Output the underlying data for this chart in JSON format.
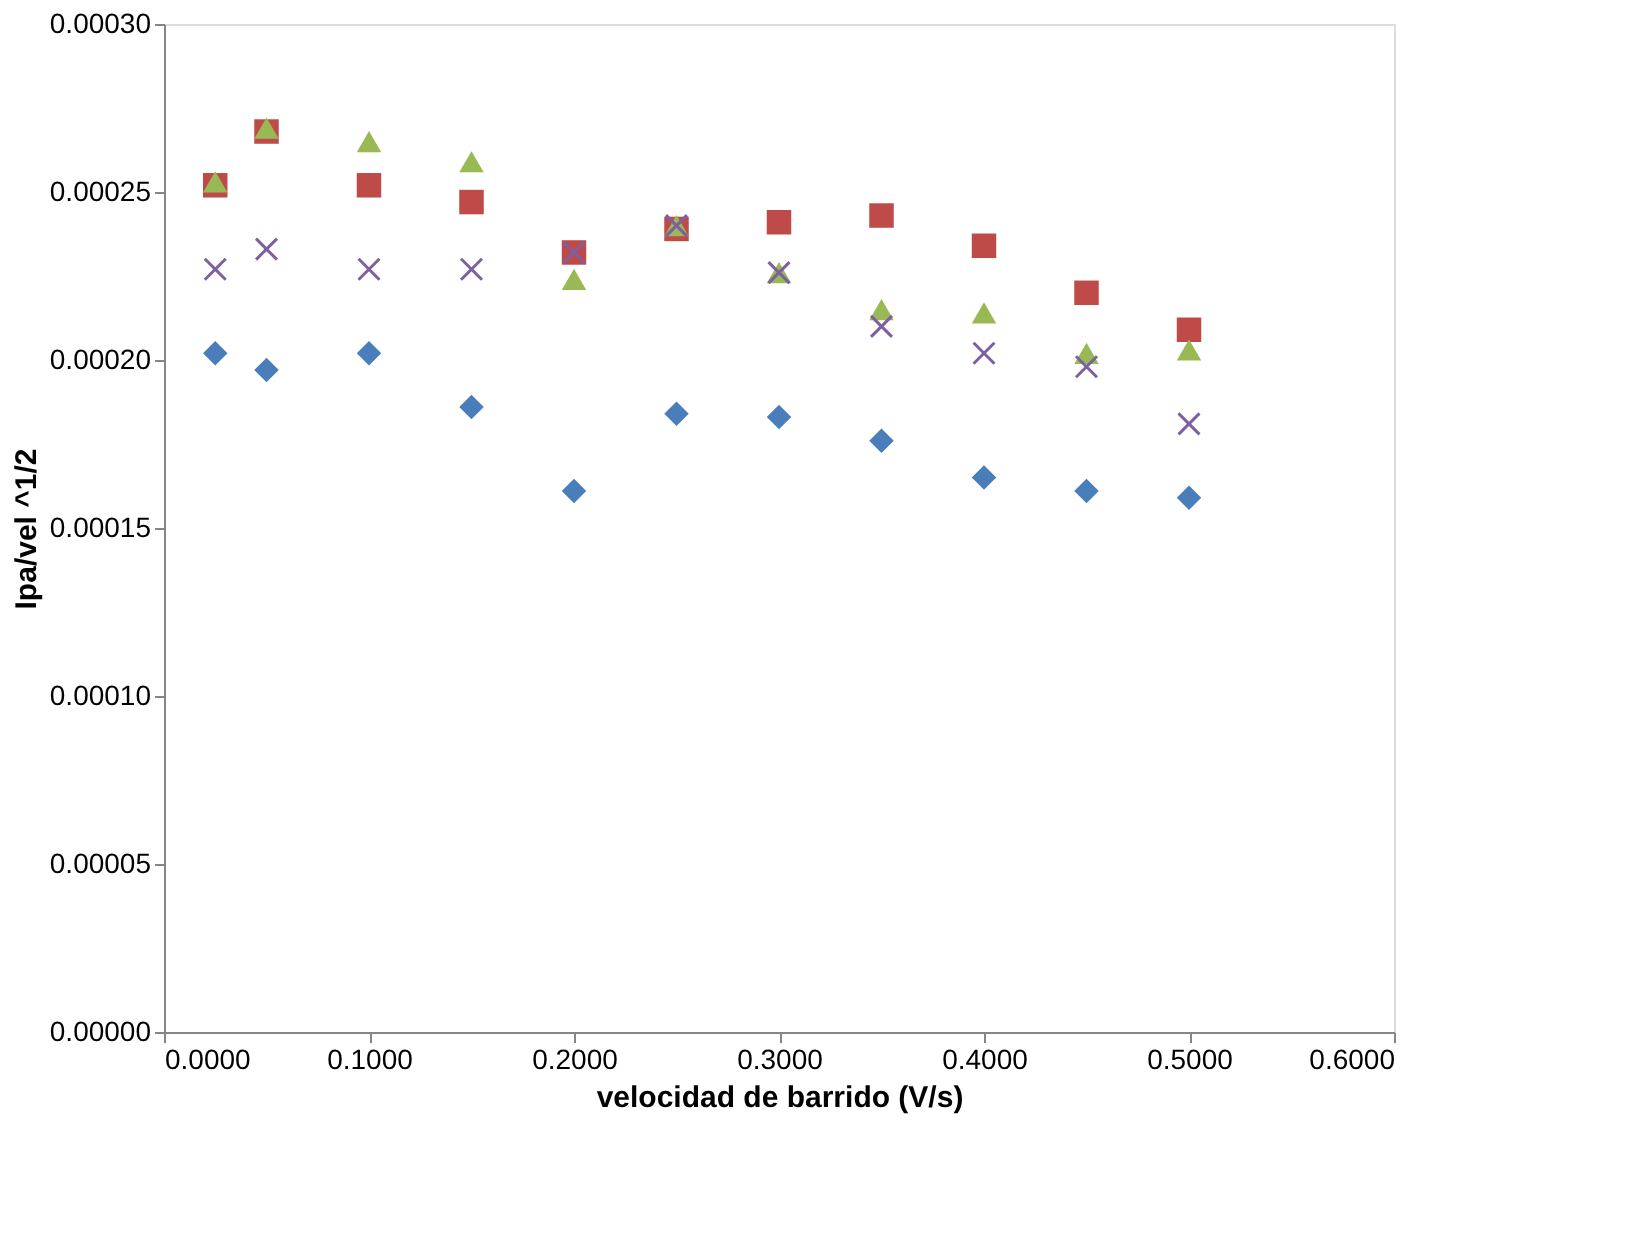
{
  "chart_data": {
    "type": "scatter",
    "xlabel": "velocidad de barrido (V/s)",
    "ylabel": "Ipa/vel ^1/2",
    "x": [
      0.025,
      0.05,
      0.1,
      0.15,
      0.2,
      0.25,
      0.3,
      0.35,
      0.4,
      0.45,
      0.5
    ],
    "series": [
      {
        "color": "#4a7ebb",
        "marker": "diamond",
        "values": [
          0.000202,
          0.000197,
          0.000202,
          0.000186,
          0.000161,
          0.000184,
          0.000183,
          0.000176,
          0.000165,
          0.000161,
          0.000159
        ]
      },
      {
        "color": "#be4b48",
        "marker": "square",
        "values": [
          0.000252,
          0.000268,
          0.000252,
          0.000247,
          0.000232,
          0.000239,
          0.000241,
          0.000243,
          0.000234,
          0.00022,
          0.000209
        ]
      },
      {
        "color": "#98b954",
        "marker": "triangle",
        "values": [
          0.000253,
          0.000269,
          0.000265,
          0.000259,
          0.000224,
          0.00024,
          0.000226,
          0.000215,
          0.000214,
          0.000202,
          0.000203
        ]
      },
      {
        "color": "#7d60a0",
        "marker": "cross",
        "values": [
          0.000227,
          0.000233,
          0.000227,
          0.000227,
          0.000232,
          0.00024,
          0.000226,
          0.00021,
          0.000202,
          0.000198,
          0.000181
        ]
      }
    ],
    "xlim": [
      0,
      0.6
    ],
    "ylim": [
      0,
      0.0003
    ],
    "xticks": [
      {
        "value": 0,
        "label": "0.0000"
      },
      {
        "value": 0.1,
        "label": "0.1000"
      },
      {
        "value": 0.2,
        "label": "0.2000"
      },
      {
        "value": 0.3,
        "label": "0.3000"
      },
      {
        "value": 0.4,
        "label": "0.4000"
      },
      {
        "value": 0.5,
        "label": "0.5000"
      },
      {
        "value": 0.6,
        "label": "0.6000"
      }
    ],
    "yticks": [
      {
        "value": 0,
        "label": "0.00000"
      },
      {
        "value": 5e-05,
        "label": "0.00005"
      },
      {
        "value": 0.0001,
        "label": "0.00010"
      },
      {
        "value": 0.00015,
        "label": "0.00015"
      },
      {
        "value": 0.0002,
        "label": "0.00020"
      },
      {
        "value": 0.00025,
        "label": "0.00025"
      },
      {
        "value": 0.0003,
        "label": "0.00030"
      }
    ],
    "grid": false
  }
}
